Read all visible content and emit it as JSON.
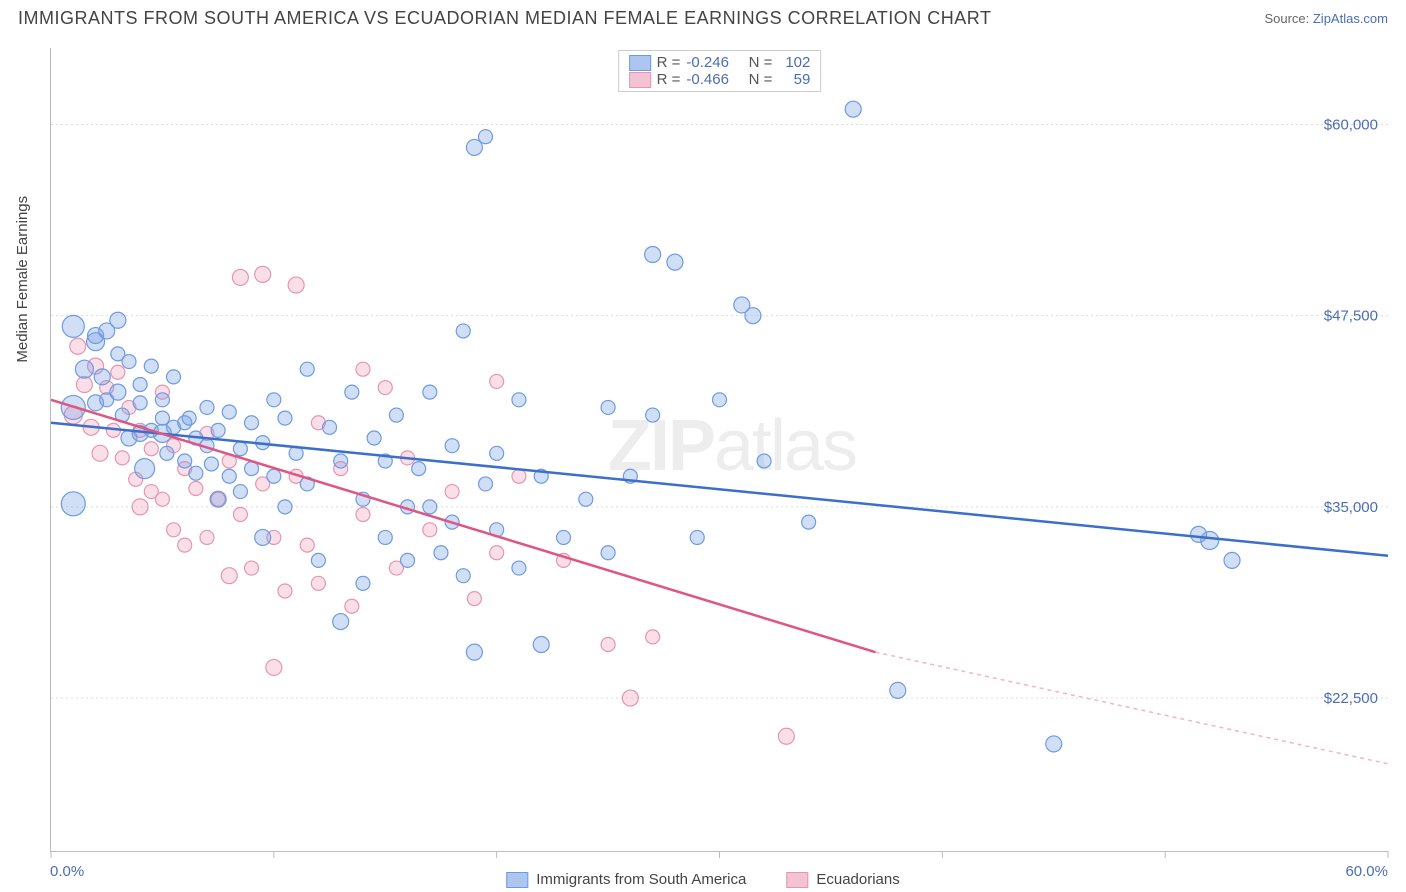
{
  "title": "IMMIGRANTS FROM SOUTH AMERICA VS ECUADORIAN MEDIAN FEMALE EARNINGS CORRELATION CHART",
  "source_prefix": "Source: ",
  "source_name": "ZipAtlas.com",
  "ylabel": "Median Female Earnings",
  "x_min_label": "0.0%",
  "x_max_label": "60.0%",
  "watermark_a": "ZIP",
  "watermark_b": "atlas",
  "xlim": [
    0,
    60
  ],
  "ylim": [
    12500,
    65000
  ],
  "y_ticks": [
    22500,
    35000,
    47500,
    60000
  ],
  "y_tick_labels": [
    "$22,500",
    "$35,000",
    "$47,500",
    "$60,000"
  ],
  "x_ticks": [
    0,
    10,
    20,
    30,
    40,
    50,
    60
  ],
  "background_color": "#ffffff",
  "grid_color": "#dddddd",
  "series": [
    {
      "name": "Immigrants from South America",
      "fill": "rgba(120,160,230,0.35)",
      "stroke": "#6e9be0",
      "swatch_fill": "#aec6ef",
      "swatch_border": "#6e9be0",
      "R": "-0.246",
      "N": "102",
      "trend": {
        "x1": 0,
        "y1": 40500,
        "x2": 60,
        "y2": 31800,
        "color": "#3b6fc9"
      },
      "points": [
        {
          "x": 1,
          "y": 46800,
          "r": 11
        },
        {
          "x": 1,
          "y": 41500,
          "r": 12
        },
        {
          "x": 1,
          "y": 35200,
          "r": 12
        },
        {
          "x": 1.5,
          "y": 44000,
          "r": 9
        },
        {
          "x": 2,
          "y": 45800,
          "r": 9
        },
        {
          "x": 2,
          "y": 46200,
          "r": 8
        },
        {
          "x": 2,
          "y": 41800,
          "r": 8
        },
        {
          "x": 2.3,
          "y": 43500,
          "r": 8
        },
        {
          "x": 2.5,
          "y": 46500,
          "r": 8
        },
        {
          "x": 2.5,
          "y": 42000,
          "r": 7
        },
        {
          "x": 3,
          "y": 47200,
          "r": 8
        },
        {
          "x": 3,
          "y": 45000,
          "r": 7
        },
        {
          "x": 3,
          "y": 42500,
          "r": 8
        },
        {
          "x": 3.2,
          "y": 41000,
          "r": 7
        },
        {
          "x": 3.5,
          "y": 44500,
          "r": 7
        },
        {
          "x": 3.5,
          "y": 39500,
          "r": 8
        },
        {
          "x": 4,
          "y": 43000,
          "r": 7
        },
        {
          "x": 4,
          "y": 41800,
          "r": 7
        },
        {
          "x": 4,
          "y": 39800,
          "r": 8
        },
        {
          "x": 4.2,
          "y": 37500,
          "r": 10
        },
        {
          "x": 4.5,
          "y": 44200,
          "r": 7
        },
        {
          "x": 4.5,
          "y": 40000,
          "r": 7
        },
        {
          "x": 5,
          "y": 42000,
          "r": 7
        },
        {
          "x": 5,
          "y": 40800,
          "r": 7
        },
        {
          "x": 5,
          "y": 39800,
          "r": 9
        },
        {
          "x": 5.2,
          "y": 38500,
          "r": 7
        },
        {
          "x": 5.5,
          "y": 43500,
          "r": 7
        },
        {
          "x": 5.5,
          "y": 40200,
          "r": 7
        },
        {
          "x": 6,
          "y": 40500,
          "r": 7
        },
        {
          "x": 6,
          "y": 38000,
          "r": 7
        },
        {
          "x": 6.2,
          "y": 40800,
          "r": 7
        },
        {
          "x": 6.5,
          "y": 39500,
          "r": 7
        },
        {
          "x": 6.5,
          "y": 37200,
          "r": 7
        },
        {
          "x": 7,
          "y": 41500,
          "r": 7
        },
        {
          "x": 7,
          "y": 39000,
          "r": 7
        },
        {
          "x": 7.2,
          "y": 37800,
          "r": 7
        },
        {
          "x": 7.5,
          "y": 40000,
          "r": 7
        },
        {
          "x": 7.5,
          "y": 35500,
          "r": 8
        },
        {
          "x": 8,
          "y": 41200,
          "r": 7
        },
        {
          "x": 8,
          "y": 37000,
          "r": 7
        },
        {
          "x": 8.5,
          "y": 38800,
          "r": 7
        },
        {
          "x": 8.5,
          "y": 36000,
          "r": 7
        },
        {
          "x": 9,
          "y": 40500,
          "r": 7
        },
        {
          "x": 9,
          "y": 37500,
          "r": 7
        },
        {
          "x": 9.5,
          "y": 39200,
          "r": 7
        },
        {
          "x": 9.5,
          "y": 33000,
          "r": 8
        },
        {
          "x": 10,
          "y": 42000,
          "r": 7
        },
        {
          "x": 10,
          "y": 37000,
          "r": 7
        },
        {
          "x": 10.5,
          "y": 40800,
          "r": 7
        },
        {
          "x": 10.5,
          "y": 35000,
          "r": 7
        },
        {
          "x": 11,
          "y": 38500,
          "r": 7
        },
        {
          "x": 11.5,
          "y": 44000,
          "r": 7
        },
        {
          "x": 11.5,
          "y": 36500,
          "r": 7
        },
        {
          "x": 12,
          "y": 31500,
          "r": 7
        },
        {
          "x": 12.5,
          "y": 40200,
          "r": 7
        },
        {
          "x": 13,
          "y": 27500,
          "r": 8
        },
        {
          "x": 13,
          "y": 38000,
          "r": 7
        },
        {
          "x": 13.5,
          "y": 42500,
          "r": 7
        },
        {
          "x": 14,
          "y": 30000,
          "r": 7
        },
        {
          "x": 14,
          "y": 35500,
          "r": 7
        },
        {
          "x": 14.5,
          "y": 39500,
          "r": 7
        },
        {
          "x": 15,
          "y": 33000,
          "r": 7
        },
        {
          "x": 15,
          "y": 38000,
          "r": 7
        },
        {
          "x": 15.5,
          "y": 41000,
          "r": 7
        },
        {
          "x": 16,
          "y": 35000,
          "r": 7
        },
        {
          "x": 16,
          "y": 31500,
          "r": 7
        },
        {
          "x": 16.5,
          "y": 37500,
          "r": 7
        },
        {
          "x": 17,
          "y": 42500,
          "r": 7
        },
        {
          "x": 17,
          "y": 35000,
          "r": 7
        },
        {
          "x": 17.5,
          "y": 32000,
          "r": 7
        },
        {
          "x": 18,
          "y": 39000,
          "r": 7
        },
        {
          "x": 18,
          "y": 34000,
          "r": 7
        },
        {
          "x": 18.5,
          "y": 46500,
          "r": 7
        },
        {
          "x": 18.5,
          "y": 30500,
          "r": 7
        },
        {
          "x": 19,
          "y": 25500,
          "r": 8
        },
        {
          "x": 19,
          "y": 58500,
          "r": 8
        },
        {
          "x": 19.5,
          "y": 36500,
          "r": 7
        },
        {
          "x": 19.5,
          "y": 59200,
          "r": 7
        },
        {
          "x": 20,
          "y": 38500,
          "r": 7
        },
        {
          "x": 20,
          "y": 33500,
          "r": 7
        },
        {
          "x": 21,
          "y": 42000,
          "r": 7
        },
        {
          "x": 21,
          "y": 31000,
          "r": 7
        },
        {
          "x": 22,
          "y": 26000,
          "r": 8
        },
        {
          "x": 22,
          "y": 37000,
          "r": 7
        },
        {
          "x": 23,
          "y": 33000,
          "r": 7
        },
        {
          "x": 24,
          "y": 35500,
          "r": 7
        },
        {
          "x": 25,
          "y": 41500,
          "r": 7
        },
        {
          "x": 25,
          "y": 32000,
          "r": 7
        },
        {
          "x": 26,
          "y": 37000,
          "r": 7
        },
        {
          "x": 27,
          "y": 41000,
          "r": 7
        },
        {
          "x": 27,
          "y": 51500,
          "r": 8
        },
        {
          "x": 28,
          "y": 51000,
          "r": 8
        },
        {
          "x": 29,
          "y": 33000,
          "r": 7
        },
        {
          "x": 30,
          "y": 42000,
          "r": 7
        },
        {
          "x": 31,
          "y": 48200,
          "r": 8
        },
        {
          "x": 31.5,
          "y": 47500,
          "r": 8
        },
        {
          "x": 32,
          "y": 38000,
          "r": 7
        },
        {
          "x": 34,
          "y": 34000,
          "r": 7
        },
        {
          "x": 36,
          "y": 61000,
          "r": 8
        },
        {
          "x": 38,
          "y": 23000,
          "r": 8
        },
        {
          "x": 45,
          "y": 19500,
          "r": 8
        },
        {
          "x": 51.5,
          "y": 33200,
          "r": 8
        },
        {
          "x": 52,
          "y": 32800,
          "r": 9
        },
        {
          "x": 53,
          "y": 31500,
          "r": 8
        }
      ]
    },
    {
      "name": "Ecuadorians",
      "fill": "rgba(240,150,180,0.30)",
      "stroke": "#e695b1",
      "swatch_fill": "#f3c3d3",
      "swatch_border": "#e695b1",
      "R": "-0.466",
      "N": "59",
      "trend_solid": {
        "x1": 0,
        "y1": 42000,
        "x2": 37,
        "y2": 25500,
        "color": "#e05582"
      },
      "trend_dash": {
        "x1": 37,
        "y1": 25500,
        "x2": 60,
        "y2": 18200,
        "color": "#f0b5c7"
      },
      "points": [
        {
          "x": 1,
          "y": 41000,
          "r": 9
        },
        {
          "x": 1.2,
          "y": 45500,
          "r": 8
        },
        {
          "x": 1.5,
          "y": 43000,
          "r": 8
        },
        {
          "x": 1.8,
          "y": 40200,
          "r": 8
        },
        {
          "x": 2,
          "y": 44200,
          "r": 8
        },
        {
          "x": 2.2,
          "y": 38500,
          "r": 8
        },
        {
          "x": 2.5,
          "y": 42800,
          "r": 7
        },
        {
          "x": 2.8,
          "y": 40000,
          "r": 7
        },
        {
          "x": 3,
          "y": 43800,
          "r": 7
        },
        {
          "x": 3.2,
          "y": 38200,
          "r": 7
        },
        {
          "x": 3.5,
          "y": 41500,
          "r": 7
        },
        {
          "x": 3.8,
          "y": 36800,
          "r": 7
        },
        {
          "x": 4,
          "y": 40000,
          "r": 7
        },
        {
          "x": 4,
          "y": 35000,
          "r": 8
        },
        {
          "x": 4.5,
          "y": 38800,
          "r": 7
        },
        {
          "x": 4.5,
          "y": 36000,
          "r": 7
        },
        {
          "x": 5,
          "y": 42500,
          "r": 7
        },
        {
          "x": 5,
          "y": 35500,
          "r": 7
        },
        {
          "x": 5.5,
          "y": 39000,
          "r": 7
        },
        {
          "x": 5.5,
          "y": 33500,
          "r": 7
        },
        {
          "x": 6,
          "y": 37500,
          "r": 7
        },
        {
          "x": 6,
          "y": 32500,
          "r": 7
        },
        {
          "x": 6.5,
          "y": 36200,
          "r": 7
        },
        {
          "x": 7,
          "y": 39800,
          "r": 7
        },
        {
          "x": 7,
          "y": 33000,
          "r": 7
        },
        {
          "x": 7.5,
          "y": 35500,
          "r": 7
        },
        {
          "x": 8,
          "y": 38000,
          "r": 7
        },
        {
          "x": 8,
          "y": 30500,
          "r": 8
        },
        {
          "x": 8.5,
          "y": 50000,
          "r": 8
        },
        {
          "x": 8.5,
          "y": 34500,
          "r": 7
        },
        {
          "x": 9,
          "y": 31000,
          "r": 7
        },
        {
          "x": 9.5,
          "y": 50200,
          "r": 8
        },
        {
          "x": 9.5,
          "y": 36500,
          "r": 7
        },
        {
          "x": 10,
          "y": 24500,
          "r": 8
        },
        {
          "x": 10,
          "y": 33000,
          "r": 7
        },
        {
          "x": 10.5,
          "y": 29500,
          "r": 7
        },
        {
          "x": 11,
          "y": 49500,
          "r": 8
        },
        {
          "x": 11,
          "y": 37000,
          "r": 7
        },
        {
          "x": 11.5,
          "y": 32500,
          "r": 7
        },
        {
          "x": 12,
          "y": 40500,
          "r": 7
        },
        {
          "x": 12,
          "y": 30000,
          "r": 7
        },
        {
          "x": 13,
          "y": 37500,
          "r": 7
        },
        {
          "x": 13.5,
          "y": 28500,
          "r": 7
        },
        {
          "x": 14,
          "y": 44000,
          "r": 7
        },
        {
          "x": 14,
          "y": 34500,
          "r": 7
        },
        {
          "x": 15,
          "y": 42800,
          "r": 7
        },
        {
          "x": 15.5,
          "y": 31000,
          "r": 7
        },
        {
          "x": 16,
          "y": 38200,
          "r": 7
        },
        {
          "x": 17,
          "y": 33500,
          "r": 7
        },
        {
          "x": 18,
          "y": 36000,
          "r": 7
        },
        {
          "x": 19,
          "y": 29000,
          "r": 7
        },
        {
          "x": 20,
          "y": 43200,
          "r": 7
        },
        {
          "x": 20,
          "y": 32000,
          "r": 7
        },
        {
          "x": 21,
          "y": 37000,
          "r": 7
        },
        {
          "x": 23,
          "y": 31500,
          "r": 7
        },
        {
          "x": 25,
          "y": 26000,
          "r": 7
        },
        {
          "x": 26,
          "y": 22500,
          "r": 8
        },
        {
          "x": 27,
          "y": 26500,
          "r": 7
        },
        {
          "x": 33,
          "y": 20000,
          "r": 8
        }
      ]
    }
  ],
  "legend_bottom": [
    {
      "swatch_fill": "#aec6ef",
      "swatch_border": "#6e9be0",
      "label": "Immigrants from South America"
    },
    {
      "swatch_fill": "#f3c3d3",
      "swatch_border": "#e695b1",
      "label": "Ecuadorians"
    }
  ]
}
